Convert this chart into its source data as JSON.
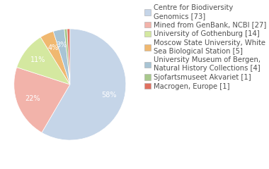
{
  "labels": [
    "Centre for Biodiversity\nGenomics [73]",
    "Mined from GenBank, NCBI [27]",
    "University of Gothenburg [14]",
    "Moscow State University, White\nSea Biological Station [5]",
    "University Museum of Bergen,\nNatural History Collections [4]",
    "Sjofartsmuseet Akvariet [1]",
    "Macrogen, Europe [1]"
  ],
  "values": [
    73,
    27,
    14,
    5,
    4,
    1,
    1
  ],
  "colors": [
    "#c5d5e8",
    "#f2b3aa",
    "#d4e8a0",
    "#f0b870",
    "#a8c4d4",
    "#a8c88c",
    "#e07060"
  ],
  "startangle": 90,
  "background_color": "#ffffff",
  "text_color": "#505050",
  "fontsize": 7.2
}
